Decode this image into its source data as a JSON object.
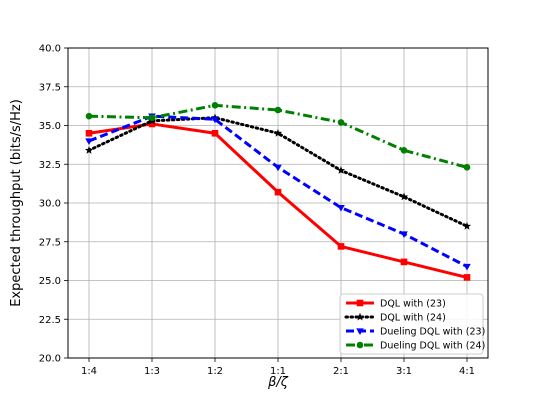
{
  "chart_data": {
    "type": "line",
    "title": "",
    "xlabel": "β/ζ",
    "ylabel": "Expected throughput (bits/s/Hz)",
    "categories": [
      "1:4",
      "1:3",
      "1:2",
      "1:1",
      "2:1",
      "3:1",
      "4:1"
    ],
    "ylim": [
      20.0,
      40.0
    ],
    "yticks": [
      "20.0",
      "22.5",
      "25.0",
      "27.5",
      "30.0",
      "32.5",
      "35.0",
      "37.5",
      "40.0"
    ],
    "grid": true,
    "legend_position": "lower-right",
    "series": [
      {
        "name": "DQL with (23)",
        "color": "#ff0000",
        "line_style": "solid",
        "marker": "square",
        "values": [
          34.5,
          35.1,
          34.5,
          30.7,
          27.2,
          26.2,
          25.2
        ]
      },
      {
        "name": "DQL with (24)",
        "color": "#000000",
        "line_style": "dotted",
        "marker": "star",
        "values": [
          33.4,
          35.3,
          35.5,
          34.5,
          32.1,
          30.4,
          28.5
        ]
      },
      {
        "name": "Dueling DQL with (23)",
        "color": "#0000ff",
        "line_style": "dashed",
        "marker": "triangle-down",
        "values": [
          34.0,
          35.6,
          35.4,
          32.3,
          29.7,
          28.0,
          25.9
        ]
      },
      {
        "name": "Dueling DQL with (24)",
        "color": "#008000",
        "line_style": "dashdot",
        "marker": "circle",
        "values": [
          35.6,
          35.5,
          36.3,
          36.0,
          35.2,
          33.4,
          32.3
        ]
      }
    ]
  }
}
